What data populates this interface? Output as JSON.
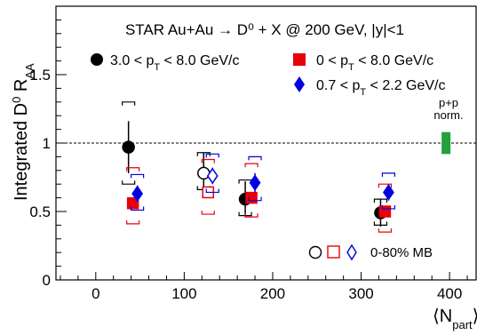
{
  "chart_data": {
    "type": "scatter",
    "title": "STAR Au+Au → D⁰ + X @ 200 GeV, |y|<1",
    "xlabel": "⟨N_part⟩",
    "ylabel": "Integrated D⁰ R_AA",
    "xlim": [
      -45,
      430
    ],
    "ylim": [
      0,
      2.0
    ],
    "x_ticks": [
      0,
      100,
      200,
      300,
      400
    ],
    "y_ticks": [
      0,
      0.5,
      1,
      1.5
    ],
    "y_tick_labels": [
      "0",
      "0.5",
      "1",
      "1.5"
    ],
    "reference_line": 1.0,
    "norm_box": {
      "x": 396,
      "low": 0.92,
      "high": 1.08,
      "color": "#22a03a",
      "label_line1": "p+p",
      "label_line2": "norm."
    },
    "legend_mb": "0-80% MB",
    "series": [
      {
        "name": "3.0 < p_T < 8.0 GeV/c",
        "marker": "circle",
        "color": "#000000",
        "x": [
          37,
          169,
          322
        ],
        "y": [
          0.97,
          0.59,
          0.49
        ],
        "stat_err": [
          0.19,
          0.13,
          0.1
        ],
        "sys_low": [
          0.27,
          0.12,
          0.09
        ],
        "sys_high": [
          0.33,
          0.14,
          0.1
        ]
      },
      {
        "name": "0 < p_T < 8.0 GeV/c",
        "marker": "square",
        "color": "#e8000b",
        "x": [
          42,
          176,
          327
        ],
        "y": [
          0.56,
          0.6,
          0.5
        ],
        "stat_err": [
          0.04,
          0.04,
          0.04
        ],
        "sys_low": [
          0.15,
          0.14,
          0.15
        ],
        "sys_high": [
          0.26,
          0.25,
          0.2
        ]
      },
      {
        "name": "0.7 < p_T < 2.2 GeV/c",
        "marker": "diamond",
        "color": "#0000e0",
        "x": [
          47,
          180,
          331
        ],
        "y": [
          0.63,
          0.71,
          0.64
        ],
        "stat_err": [
          0.06,
          0.07,
          0.06
        ],
        "sys_low": [
          0.12,
          0.13,
          0.12
        ],
        "sys_high": [
          0.14,
          0.19,
          0.14
        ]
      },
      {
        "name": "0-80% MB circle",
        "marker": "open-circle",
        "color": "#000000",
        "x": [
          122
        ],
        "y": [
          0.78
        ],
        "stat_err": [
          0.15
        ],
        "sys_low": [
          0.12
        ],
        "sys_high": [
          0.15
        ]
      },
      {
        "name": "0-80% MB square",
        "marker": "open-square",
        "color": "#e8000b",
        "x": [
          127
        ],
        "y": [
          0.64
        ],
        "stat_err": [
          0.04
        ],
        "sys_low": [
          0.16
        ],
        "sys_high": [
          0.24
        ]
      },
      {
        "name": "0-80% MB diamond",
        "marker": "open-diamond",
        "color": "#0000e0",
        "x": [
          132
        ],
        "y": [
          0.76
        ],
        "stat_err": [
          0.06
        ],
        "sys_low": [
          0.12
        ],
        "sys_high": [
          0.16
        ]
      }
    ]
  }
}
